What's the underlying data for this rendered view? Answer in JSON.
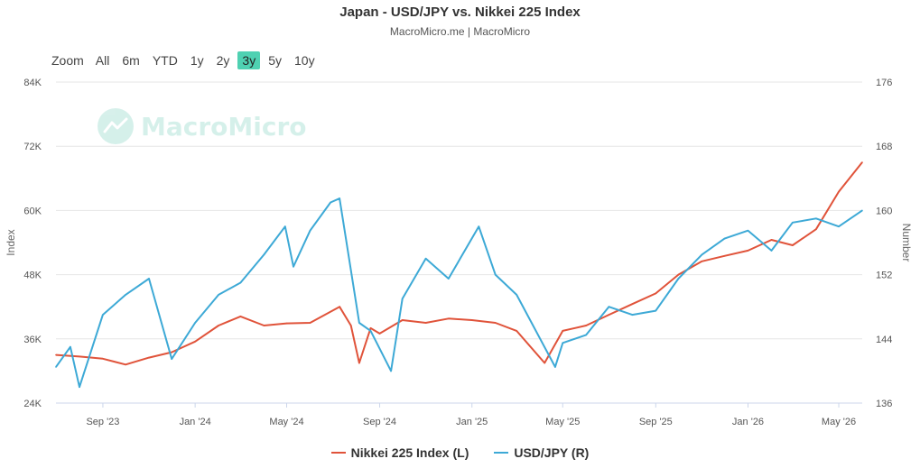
{
  "header": {
    "title": "Japan - USD/JPY vs. Nikkei 225 Index",
    "subtitle": "MacroMicro.me | MacroMicro"
  },
  "zoom": {
    "label": "Zoom",
    "options": [
      "All",
      "6m",
      "YTD",
      "1y",
      "2y",
      "3y",
      "5y",
      "10y"
    ],
    "selected": "3y"
  },
  "watermark": {
    "text": "MacroMicro"
  },
  "colors": {
    "nikkei": "#e0533a",
    "usdjpy": "#3da9d6",
    "grid": "#e6e6e6",
    "zoom_active": "#4fd1b2"
  },
  "chart_data": {
    "type": "line",
    "title": "Japan - USD/JPY vs. Nikkei 225 Index",
    "x_ticks": [
      "Sep '23",
      "Jan '24",
      "May '24",
      "Sep '24",
      "Jan '25",
      "May '25",
      "Sep '25",
      "Jan '26",
      "May '26"
    ],
    "x_range": [
      "2023-07",
      "2026-06"
    ],
    "left_axis": {
      "label": "Index",
      "ticks": [
        "24K",
        "36K",
        "48K",
        "60K",
        "72K",
        "84K"
      ],
      "range": [
        24000,
        84000
      ]
    },
    "right_axis": {
      "label": "Number",
      "ticks": [
        "136",
        "144",
        "152",
        "160",
        "168",
        "176"
      ],
      "range": [
        136,
        176
      ]
    },
    "grid": true,
    "legend_position": "bottom",
    "series": [
      {
        "name": "Nikkei 225 Index (L)",
        "axis": "left",
        "x": [
          "2023-07-01",
          "2023-08-01",
          "2023-09-01",
          "2023-10-01",
          "2023-11-01",
          "2023-12-01",
          "2024-01-01",
          "2024-02-01",
          "2024-03-01",
          "2024-04-01",
          "2024-05-01",
          "2024-06-01",
          "2024-07-10",
          "2024-07-25",
          "2024-08-05",
          "2024-08-20",
          "2024-09-01",
          "2024-10-01",
          "2024-11-01",
          "2024-12-01",
          "2025-01-01",
          "2025-02-01",
          "2025-03-01",
          "2025-04-07",
          "2025-05-01",
          "2025-06-01",
          "2025-07-01",
          "2025-08-01",
          "2025-09-01",
          "2025-10-01",
          "2025-11-01",
          "2025-12-01",
          "2026-01-01",
          "2026-02-01",
          "2026-03-01",
          "2026-04-01",
          "2026-05-01",
          "2026-06-01"
        ],
        "values": [
          33000,
          32700,
          32300,
          31200,
          32500,
          33500,
          35500,
          38500,
          40200,
          38500,
          38900,
          39000,
          42000,
          38500,
          31500,
          38000,
          37000,
          39500,
          39000,
          39800,
          39500,
          39000,
          37500,
          31500,
          37500,
          38500,
          40500,
          42500,
          44500,
          48000,
          50500,
          51500,
          52500,
          54500,
          53500,
          56500,
          63500,
          69000
        ]
      },
      {
        "name": "USD/JPY (R)",
        "axis": "right",
        "x": [
          "2023-07-01",
          "2023-07-20",
          "2023-08-01",
          "2023-09-01",
          "2023-10-01",
          "2023-11-01",
          "2023-12-01",
          "2024-01-01",
          "2024-02-01",
          "2024-03-01",
          "2024-04-01",
          "2024-04-29",
          "2024-05-10",
          "2024-06-01",
          "2024-06-28",
          "2024-07-10",
          "2024-08-05",
          "2024-08-20",
          "2024-09-16",
          "2024-10-01",
          "2024-11-01",
          "2024-12-01",
          "2025-01-10",
          "2025-02-01",
          "2025-03-01",
          "2025-04-21",
          "2025-05-01",
          "2025-06-01",
          "2025-07-01",
          "2025-08-01",
          "2025-09-01",
          "2025-10-01",
          "2025-11-01",
          "2025-12-01",
          "2026-01-01",
          "2026-02-01",
          "2026-03-01",
          "2026-04-01",
          "2026-05-01",
          "2026-06-01"
        ],
        "values": [
          140.5,
          143,
          138,
          147,
          149.5,
          151.5,
          141.5,
          146,
          149.5,
          151,
          154.5,
          158,
          153,
          157.5,
          161,
          161.5,
          146,
          145,
          140,
          149,
          154,
          151.5,
          158,
          152,
          149.5,
          140.5,
          143.5,
          144.5,
          148,
          147,
          147.5,
          151.5,
          154.5,
          156.5,
          157.5,
          155,
          158.5,
          159,
          158,
          160
        ]
      }
    ]
  }
}
